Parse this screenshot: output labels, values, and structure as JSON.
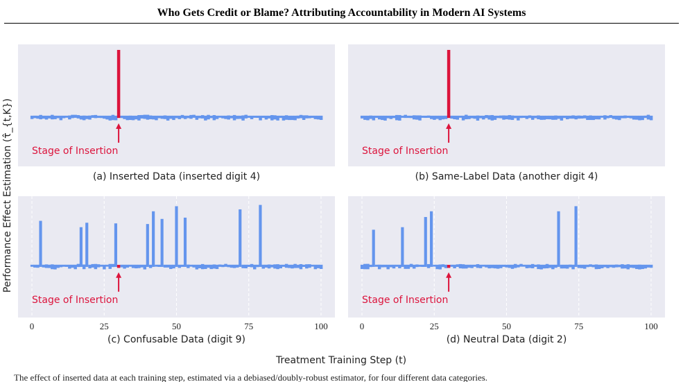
{
  "header": {
    "title": "Who Gets Credit or Blame? Attributing Accountability in Modern AI Systems"
  },
  "figure": {
    "ylabel": "Performance Effect Estimation (τ̂_{t,K})",
    "xlabel": "Treatment Training Step (t)",
    "annotation_text": "Stage of Insertion",
    "caption_fragment": "The effect of inserted data at each training step, estimated via a debiased/doubly-robust estimator, for four different data categories."
  },
  "colors": {
    "background": "#eaeaf2",
    "gridline": "#ffffff",
    "bar": "#6495ed",
    "insertion": "#dc143c"
  },
  "chart_data": [
    {
      "type": "bar",
      "panel": "a",
      "title": "(a) Inserted Data (inserted digit 4)",
      "xlim": [
        0,
        100
      ],
      "xticks_visible": false,
      "insertion_step": 30,
      "baseline": 0,
      "noise_amplitude": 0.04,
      "spikes": [
        {
          "x": 30,
          "value": 1.0,
          "highlight": true
        }
      ]
    },
    {
      "type": "bar",
      "panel": "b",
      "title": "(b) Same-Label Data (another digit 4)",
      "xlim": [
        0,
        100
      ],
      "xticks_visible": false,
      "insertion_step": 30,
      "baseline": 0,
      "noise_amplitude": 0.04,
      "spikes": [
        {
          "x": 30,
          "value": 1.0,
          "highlight": true
        }
      ]
    },
    {
      "type": "bar",
      "panel": "c",
      "title": "(c) Confusable Data (digit 9)",
      "xlim": [
        0,
        100
      ],
      "xticks": [
        0,
        25,
        50,
        75,
        100
      ],
      "insertion_step": 30,
      "baseline": 0,
      "noise_amplitude": 0.04,
      "spikes": [
        {
          "x": 3,
          "value": 0.7
        },
        {
          "x": 17,
          "value": 0.6
        },
        {
          "x": 19,
          "value": 0.67
        },
        {
          "x": 29,
          "value": 0.66
        },
        {
          "x": 30,
          "value": -0.04,
          "highlight": true
        },
        {
          "x": 40,
          "value": 0.65
        },
        {
          "x": 42,
          "value": 0.85
        },
        {
          "x": 45,
          "value": 0.73
        },
        {
          "x": 50,
          "value": 0.93
        },
        {
          "x": 53,
          "value": 0.75
        },
        {
          "x": 72,
          "value": 0.88
        },
        {
          "x": 79,
          "value": 0.95
        }
      ]
    },
    {
      "type": "bar",
      "panel": "d",
      "title": "(d) Neutral Data (digit 2)",
      "xlim": [
        0,
        100
      ],
      "xticks": [
        0,
        25,
        50,
        75,
        100
      ],
      "insertion_step": 30,
      "baseline": 0,
      "noise_amplitude": 0.04,
      "spikes": [
        {
          "x": 4,
          "value": 0.56
        },
        {
          "x": 14,
          "value": 0.6
        },
        {
          "x": 22,
          "value": 0.76
        },
        {
          "x": 24,
          "value": 0.85
        },
        {
          "x": 30,
          "value": -0.04,
          "highlight": true
        },
        {
          "x": 68,
          "value": 0.85
        },
        {
          "x": 74,
          "value": 0.93
        }
      ]
    }
  ]
}
